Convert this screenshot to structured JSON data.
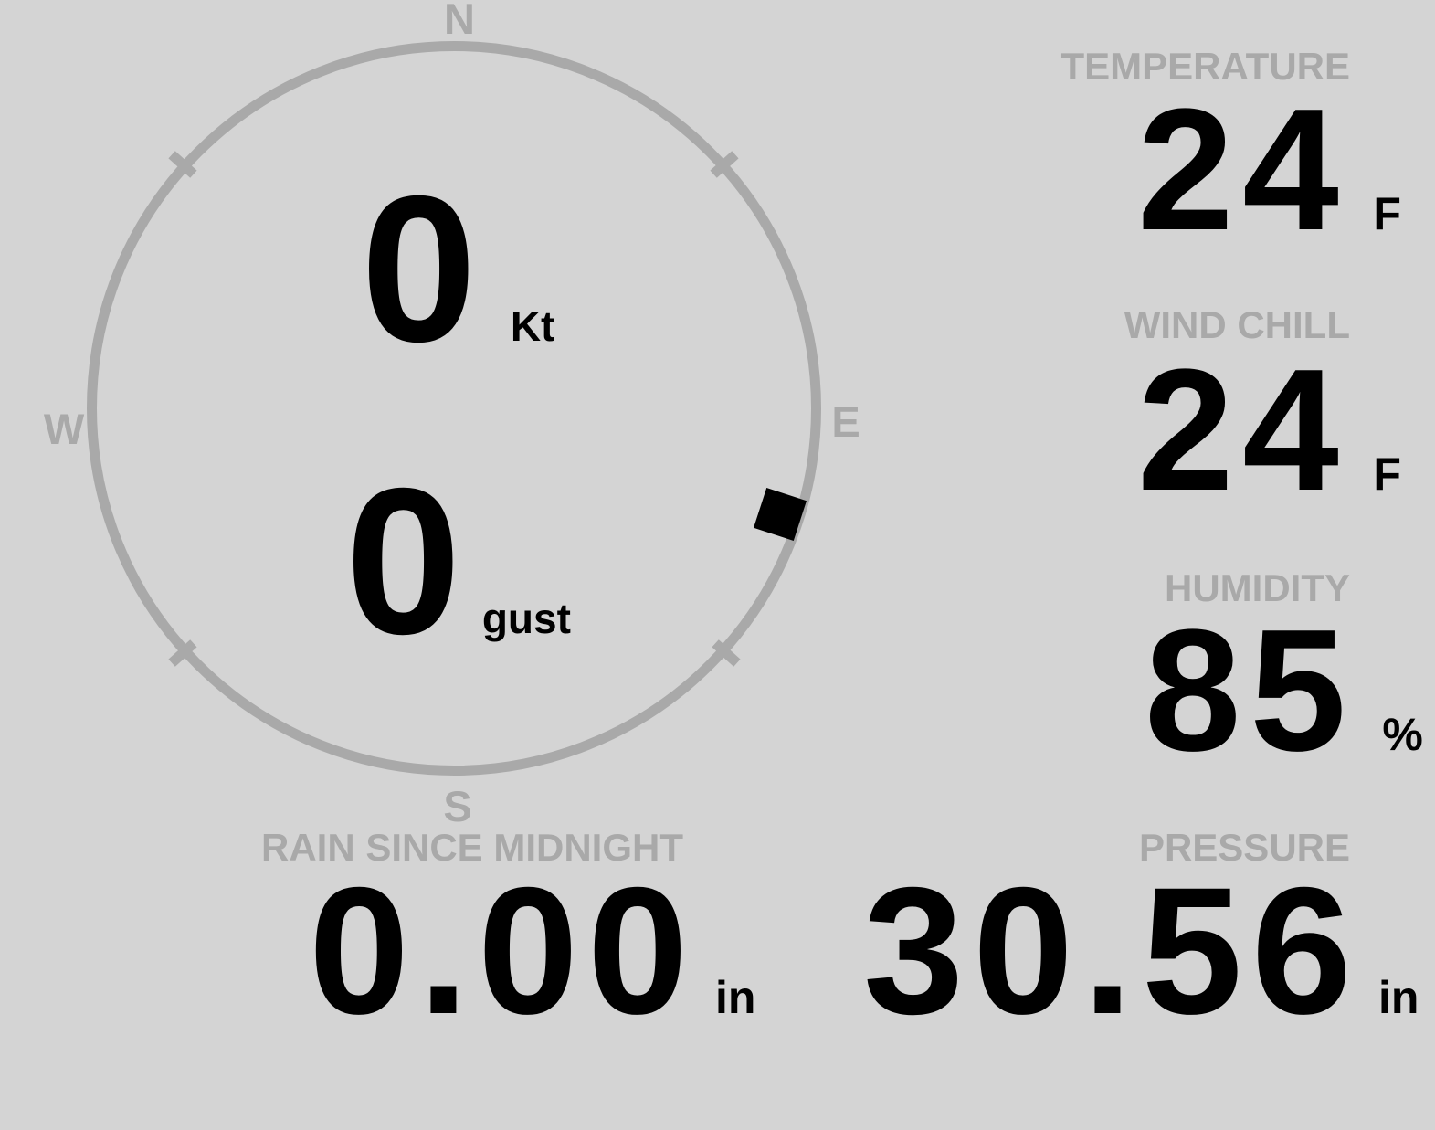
{
  "theme": {
    "background": "#d4d4d4",
    "muted_gray": "#a9a9a9",
    "value_black": "#000000"
  },
  "compass": {
    "cardinal_n": "N",
    "cardinal_e": "E",
    "cardinal_s": "S",
    "cardinal_w": "W",
    "wind": {
      "speed": "0",
      "speed_unit": "Kt",
      "gust": "0",
      "gust_unit": "gust",
      "direction_deg": 108
    }
  },
  "stats": {
    "temperature": {
      "label": "TEMPERATURE",
      "value": "24",
      "unit": "F"
    },
    "wind_chill": {
      "label": "WIND CHILL",
      "value": "24",
      "unit": "F"
    },
    "humidity": {
      "label": "HUMIDITY",
      "value": "85",
      "unit": "%"
    },
    "pressure": {
      "label": "PRESSURE",
      "value": "30.56",
      "unit": "in"
    },
    "rain": {
      "label": "RAIN SINCE MIDNIGHT",
      "value": "0.00",
      "unit": "in"
    }
  }
}
